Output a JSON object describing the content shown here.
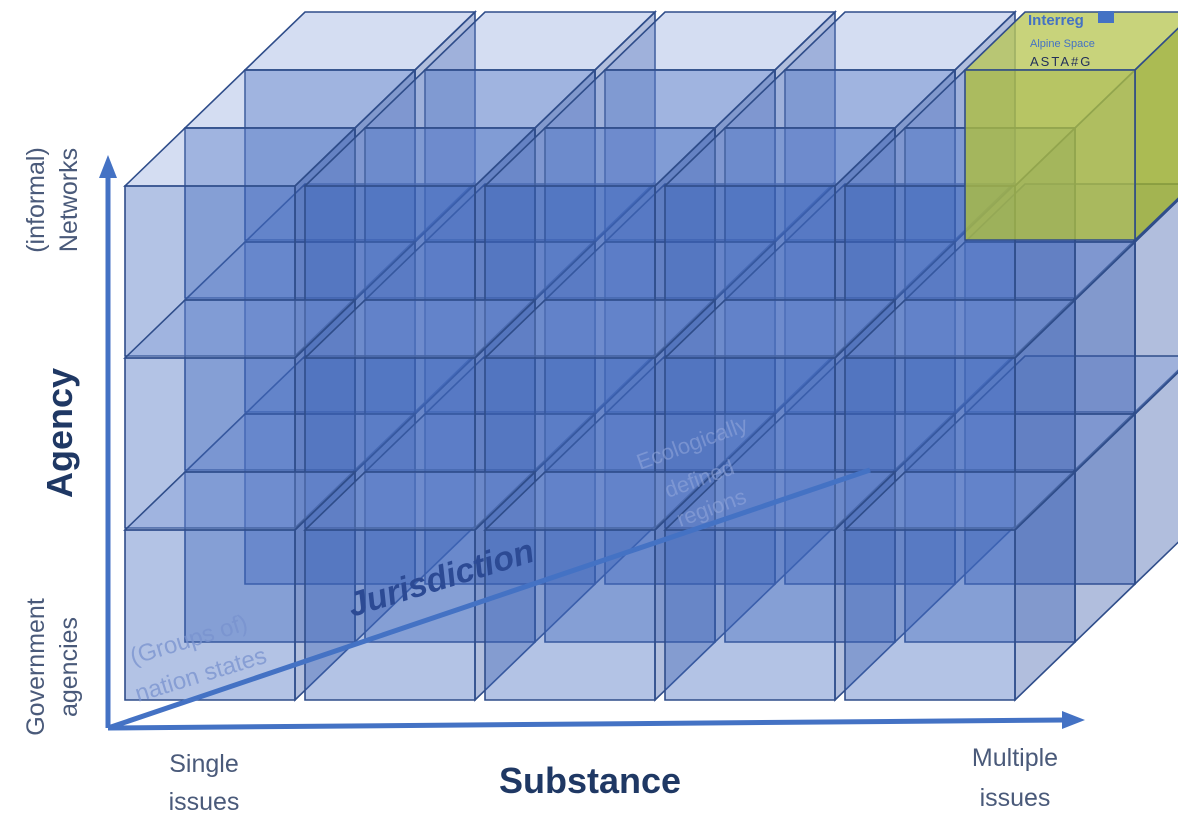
{
  "axes": {
    "x_title": "Substance",
    "x_start": [
      "Single",
      "issues"
    ],
    "x_end": [
      "Multiple",
      "issues"
    ],
    "y_title": "Agency",
    "y_start": [
      "Government",
      "agencies"
    ],
    "y_end": [
      "(informal)",
      "Networks"
    ],
    "z_title": "Jurisdiction",
    "z_start": [
      "(Groups of)",
      "nation states"
    ],
    "z_end": [
      "Ecologically",
      "defined",
      "regions"
    ]
  },
  "logo": {
    "brand": "Interreg",
    "programme": "Alpine Space",
    "project": "ASTA#G"
  },
  "colors": {
    "axis": "#4472c4",
    "cube_edge": "#2f4d8a",
    "highlight": "#aebe3c",
    "title_text": "#1f3864"
  }
}
